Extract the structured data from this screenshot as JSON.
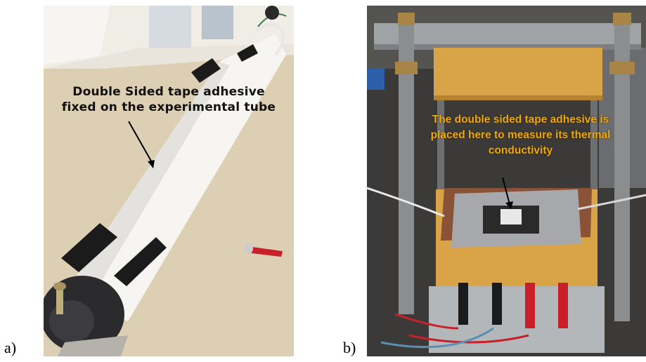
{
  "panels": {
    "a": {
      "label": "a)",
      "annotation_lines": [
        "Double Sided tape adhesive",
        "fixed on the experimental tube"
      ]
    },
    "b": {
      "label": "b)",
      "annotation_lines": [
        "The double sided tape adhesive is",
        "placed here to measure its thermal",
        "conductivity"
      ],
      "annotation_color": "#f2a900"
    }
  },
  "colors": {
    "table_surface": "#d9cdb2",
    "tube_white": "#f5f4f0",
    "tape_black": "#1b1b1b",
    "insulation_orange": "#d9a447",
    "plate_copper": "#8a5236",
    "probe_red": "#c8202a"
  }
}
